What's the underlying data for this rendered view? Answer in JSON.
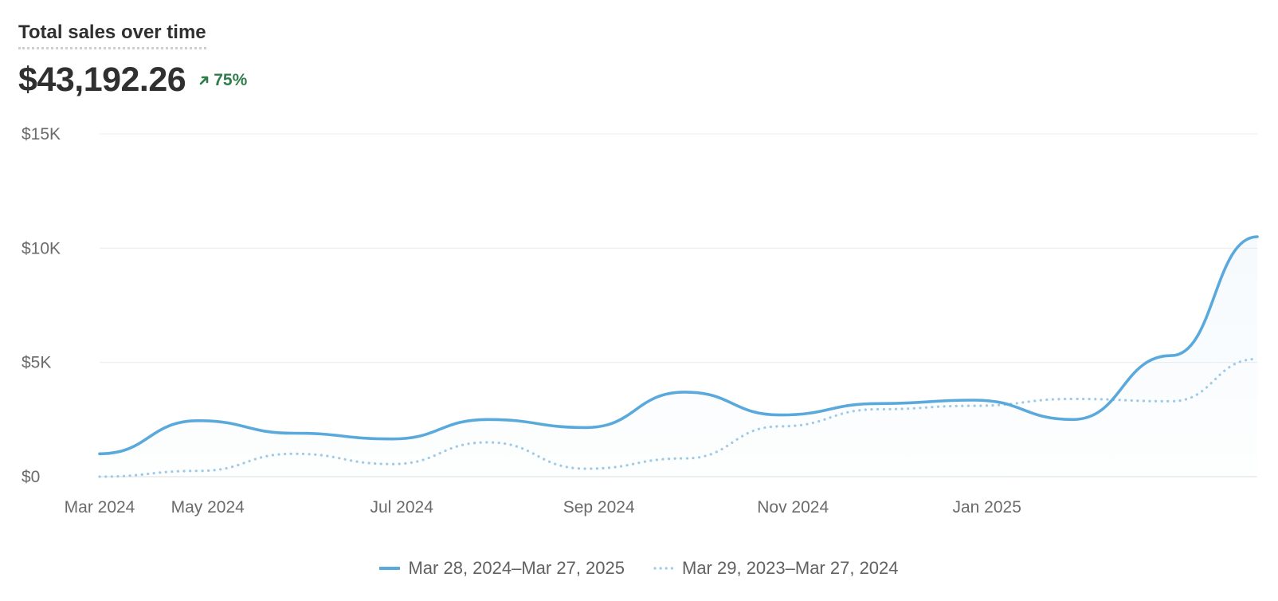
{
  "header": {
    "title": "Total sales over time",
    "total": "$43,192.26",
    "change": "75%",
    "change_icon": "arrow-up-right-icon",
    "change_color": "#2e7d4a"
  },
  "legend": {
    "current": "Mar 28, 2024–Mar 27, 2025",
    "previous": "Mar 29, 2023–Mar 27, 2024"
  },
  "chart_data": {
    "type": "line",
    "title": "Total sales over time",
    "xlabel": "",
    "ylabel": "",
    "x": [
      "2024-03-28",
      "2024-04-28",
      "2024-05-28",
      "2024-06-28",
      "2024-07-28",
      "2024-08-28",
      "2024-09-28",
      "2024-10-28",
      "2024-11-28",
      "2024-12-28",
      "2025-01-28",
      "2025-02-28",
      "2025-03-27"
    ],
    "x_tick_labels": [
      "Mar 2024",
      "May 2024",
      "Jul 2024",
      "Sep 2024",
      "Nov 2024",
      "Jan 2025"
    ],
    "y_tick_labels": [
      "$0",
      "$5K",
      "$10K",
      "$15K"
    ],
    "ylim": [
      0,
      15000
    ],
    "grid": true,
    "legend_position": "bottom",
    "series": [
      {
        "name": "Mar 28, 2024–Mar 27, 2025",
        "style": "solid",
        "color": "#5aa9dc",
        "values": [
          1000,
          2450,
          1900,
          1650,
          2500,
          2150,
          3700,
          2700,
          3200,
          3350,
          2500,
          5300,
          10500
        ]
      },
      {
        "name": "Mar 29, 2023–Mar 27, 2024",
        "style": "dotted",
        "color": "#9ecae8",
        "values": [
          0,
          250,
          1000,
          550,
          1500,
          350,
          800,
          2200,
          2950,
          3100,
          3400,
          3300,
          5150
        ]
      }
    ]
  }
}
